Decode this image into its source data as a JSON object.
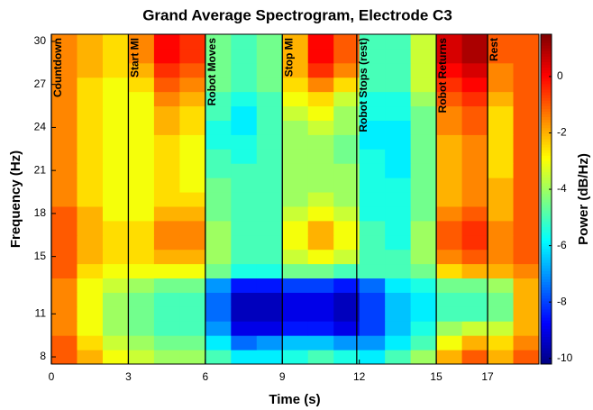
{
  "chart_data": {
    "type": "heatmap",
    "title": "Grand Average Spectrogram, Electrode C3",
    "x_label": "Time (s)",
    "y_label": "Frequency (Hz)",
    "colorbar_label": "Power (dB/Hz)",
    "colormap": "jet",
    "xlim": [
      0,
      19
    ],
    "ylim": [
      7.5,
      30.5
    ],
    "clim": [
      -10.2,
      1.5
    ],
    "xticks": [
      0,
      3,
      6,
      9,
      12,
      15,
      17
    ],
    "yticks": [
      8,
      11,
      15,
      18,
      21,
      24,
      27,
      30
    ],
    "cticks": [
      0,
      -2,
      -4,
      -6,
      -8,
      -10
    ],
    "x": [
      0.5,
      1.5,
      2.5,
      3.5,
      4.5,
      5.5,
      6.5,
      7.5,
      8.5,
      9.5,
      10.5,
      11.5,
      12.5,
      13.5,
      14.5,
      15.5,
      16.5,
      17.5,
      18.5
    ],
    "y": [
      8,
      9,
      10,
      11,
      12,
      13,
      14,
      15,
      16,
      17,
      18,
      19,
      20,
      21,
      22,
      23,
      24,
      25,
      26,
      27,
      28,
      29,
      30
    ],
    "values": [
      [
        -1,
        -2,
        -3,
        -3.5,
        -4,
        -4,
        -5,
        -6,
        -6,
        -5.5,
        -5,
        -5.5,
        -6,
        -5,
        -4,
        -2,
        -1,
        -2,
        -1
      ],
      [
        -1,
        -2.5,
        -3.5,
        -4,
        -4.5,
        -4.5,
        -6,
        -7.5,
        -7,
        -6.5,
        -6.5,
        -7,
        -7,
        -6,
        -5,
        -3,
        -2,
        -2.5,
        -1.5
      ],
      [
        -1.5,
        -3,
        -4,
        -4.5,
        -5,
        -5,
        -7,
        -9,
        -9,
        -8.5,
        -8.5,
        -9,
        -8,
        -6.5,
        -5.5,
        -4,
        -3.5,
        -3.5,
        -2
      ],
      [
        -1.5,
        -3,
        -4,
        -4.5,
        -5,
        -5,
        -7.5,
        -9.5,
        -9.5,
        -9,
        -9,
        -9.5,
        -8,
        -6.5,
        -6,
        -5,
        -5,
        -4.5,
        -2
      ],
      [
        -1.5,
        -3,
        -4,
        -4.5,
        -5,
        -5,
        -7.5,
        -9.5,
        -9.5,
        -9,
        -9,
        -9.5,
        -8,
        -6.5,
        -6,
        -5,
        -5,
        -4.5,
        -2
      ],
      [
        -1.5,
        -3,
        -3.5,
        -4,
        -4.5,
        -4.5,
        -7,
        -8.5,
        -8.5,
        -8,
        -8,
        -8.5,
        -7.5,
        -6,
        -5.5,
        -4.5,
        -4.5,
        -4,
        -2
      ],
      [
        -1,
        -2.5,
        -3,
        -3,
        -3,
        -3,
        -4.5,
        -5.5,
        -5.5,
        -4.5,
        -4.5,
        -5,
        -5,
        -5,
        -4.5,
        -2.5,
        -2,
        -2,
        -1.5
      ],
      [
        -1,
        -2,
        -2.5,
        -2.5,
        -2,
        -2,
        -4,
        -5,
        -5,
        -3.5,
        -3,
        -3.5,
        -5,
        -5,
        -4,
        -1.5,
        -1,
        -1.5,
        -1
      ],
      [
        -1,
        -2,
        -2.5,
        -2.5,
        -1.5,
        -1.5,
        -4,
        -5,
        -5,
        -3,
        -2,
        -3,
        -5,
        -5.5,
        -4,
        -1,
        -0.5,
        -1.5,
        -1
      ],
      [
        -1,
        -2,
        -2.5,
        -2.5,
        -1.5,
        -1.5,
        -4,
        -5,
        -5,
        -3,
        -2,
        -3,
        -5,
        -5.5,
        -4,
        -1,
        -0.5,
        -1.5,
        -1
      ],
      [
        -1,
        -2,
        -3,
        -3,
        -2,
        -2,
        -4.5,
        -5,
        -5,
        -3.5,
        -3,
        -3.5,
        -5.5,
        -5.5,
        -4.5,
        -1.5,
        -1,
        -2,
        -1
      ],
      [
        -1.5,
        -2.5,
        -3,
        -3,
        -2.5,
        -2.5,
        -4.5,
        -5,
        -5,
        -4,
        -3.5,
        -4,
        -5.5,
        -5.5,
        -4.5,
        -2,
        -1.5,
        -2,
        -1
      ],
      [
        -1.5,
        -2.5,
        -3,
        -3,
        -2.5,
        -3,
        -4.5,
        -5,
        -5,
        -4,
        -4,
        -4,
        -5.5,
        -5.5,
        -4.5,
        -2,
        -1.5,
        -2,
        -1
      ],
      [
        -1.5,
        -2.5,
        -3,
        -3,
        -2.5,
        -3,
        -5,
        -5,
        -5,
        -4,
        -4,
        -4,
        -5.5,
        -6,
        -4.5,
        -2,
        -1.5,
        -2.5,
        -1
      ],
      [
        -1.5,
        -2.5,
        -3,
        -3,
        -2.5,
        -3,
        -5,
        -5.5,
        -5,
        -4,
        -4,
        -4.5,
        -5.5,
        -6,
        -4.5,
        -2,
        -1.5,
        -2.5,
        -1
      ],
      [
        -1.5,
        -2.5,
        -3,
        -3,
        -2.5,
        -3,
        -5.5,
        -5.5,
        -5,
        -4,
        -4,
        -4.5,
        -6,
        -6,
        -4.5,
        -2,
        -1.5,
        -2.5,
        -1
      ],
      [
        -1.5,
        -2.5,
        -3,
        -3,
        -2,
        -2.5,
        -5.5,
        -6,
        -5,
        -4,
        -3.5,
        -4,
        -6,
        -6,
        -4.5,
        -1.5,
        -1,
        -2.5,
        -1
      ],
      [
        -1.5,
        -2.5,
        -3,
        -3,
        -2,
        -2.5,
        -5,
        -6,
        -5,
        -3.5,
        -3,
        -4,
        -5.5,
        -5.5,
        -4.5,
        -1.5,
        -1,
        -2.5,
        -1
      ],
      [
        -1.5,
        -2.5,
        -3,
        -3,
        -1.5,
        -2,
        -5,
        -5.5,
        -5,
        -3,
        -2.5,
        -3.5,
        -5.5,
        -5.5,
        -4,
        -1,
        -0.5,
        -2,
        -1
      ],
      [
        -1.5,
        -2.5,
        -3,
        -2.5,
        -1,
        -1.5,
        -4.5,
        -5,
        -4.5,
        -2.5,
        -1.5,
        -2.5,
        -5,
        -5,
        -3.5,
        -0.5,
        0,
        -1.5,
        -1
      ],
      [
        -1.5,
        -2,
        -2.5,
        -2,
        -0.5,
        -1,
        -4.5,
        -5,
        -4.5,
        -2,
        -0.5,
        -1.5,
        -5,
        -5,
        -3.5,
        0,
        0.5,
        -1.5,
        -1
      ],
      [
        -1.5,
        -2,
        -2.5,
        -1.5,
        0,
        -0.5,
        -4.5,
        -5,
        -4.5,
        -2,
        0,
        -1,
        -5,
        -5,
        -3.5,
        0.5,
        1,
        -1,
        -1
      ],
      [
        -1.5,
        -2,
        -2.5,
        -1.5,
        0,
        -0.5,
        -4.5,
        -5,
        -4.5,
        -2,
        0,
        -1,
        -5,
        -5,
        -3.5,
        0.5,
        1,
        -1,
        -1
      ]
    ],
    "annotations": [
      {
        "text": "Countdown",
        "x": 0
      },
      {
        "text": "Start MI",
        "x": 3
      },
      {
        "text": "Robot Moves",
        "x": 6
      },
      {
        "text": "Stop MI",
        "x": 9
      },
      {
        "text": "Robot Stops (rest)",
        "x": 11.9
      },
      {
        "text": "Robot Returns",
        "x": 15
      },
      {
        "text": "Rest",
        "x": 17
      }
    ]
  }
}
